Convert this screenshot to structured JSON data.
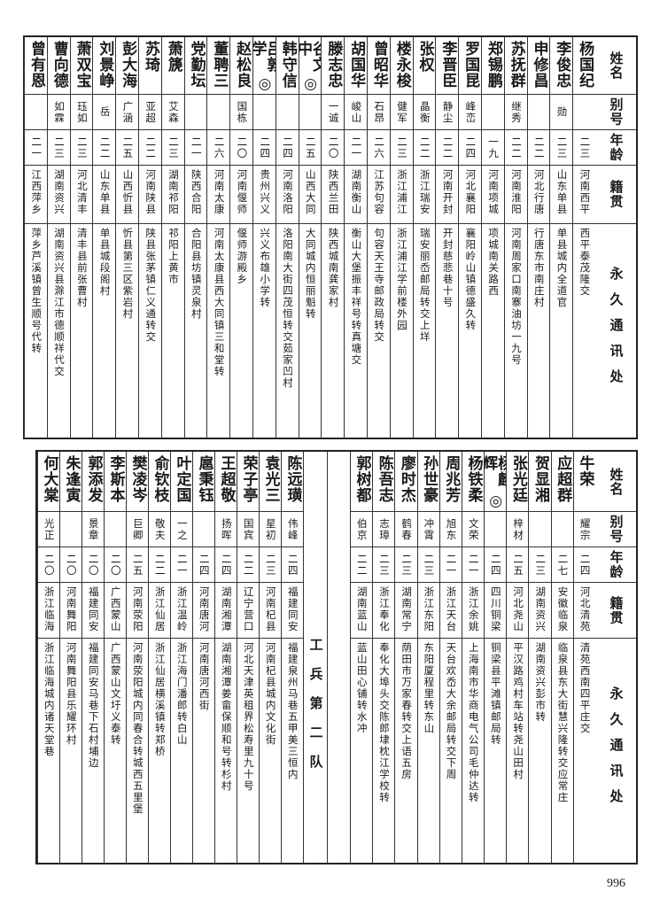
{
  "header": {
    "name": "姓名",
    "alias": "别号",
    "age": "年龄",
    "native": "籍贯",
    "address": "永久通讯处"
  },
  "top_table": {
    "rows": [
      {
        "name": "杨国纪",
        "alias": "",
        "age": "二三",
        "native": "河南西平",
        "address": "西平泰茂隆交"
      },
      {
        "name": "李俊忠",
        "alias": "勋",
        "age": "二三",
        "native": "山东单县",
        "address": "单县城内全道官"
      },
      {
        "name": "申修昌",
        "alias": "",
        "age": "二二",
        "native": "河北行唐",
        "address": "行唐东市南庄村"
      },
      {
        "name": "苏抚群",
        "alias": "继秀",
        "age": "二二",
        "native": "河南淮阳",
        "address": "河南周家口南寨油坊一九号"
      },
      {
        "name": "郑锡鹏",
        "alias": "",
        "age": "一九",
        "native": "河南项城",
        "address": "项城南关路西"
      },
      {
        "name": "罗国昆",
        "alias": "峰峦",
        "age": "二四",
        "native": "河北襄阳",
        "address": "襄阳岭山镇德盛久转"
      },
      {
        "name": "李晋臣",
        "alias": "静尘",
        "age": "二二",
        "native": "河南开封",
        "address": "开封慈悲巷十号"
      },
      {
        "name": "张权",
        "alias": "晶衡",
        "age": "二二",
        "native": "浙江瑞安",
        "address": "瑞安丽岙邮局转交上垟"
      },
      {
        "name": "楼永梭",
        "alias": "健军",
        "age": "二三",
        "native": "浙江浦江",
        "address": "浙江浦江学前楼外园"
      },
      {
        "name": "曾昭华",
        "alias": "石昂",
        "age": "二六",
        "native": "江苏句容",
        "address": "句容天王寺邮政局转交"
      },
      {
        "name": "胡国华",
        "alias": "峻山",
        "age": "二一",
        "native": "湖南衡山",
        "address": "衡山大堡振丰祥号转真塘交"
      },
      {
        "name": "滕志忠",
        "alias": "一诚",
        "age": "二〇",
        "native": "陕西兰田",
        "address": "陕西城南龚家村"
      },
      {
        "name": "谷文中",
        "mark": "◎",
        "alias": "",
        "age": "二五",
        "native": "山西大同",
        "address": "大同城内恒丽魁转"
      },
      {
        "name": "韩守信",
        "alias": "",
        "age": "二四",
        "native": "河南洛阳",
        "address": "洛阳南大街四茂恒转交茹家凹村"
      },
      {
        "name": "吕敦学",
        "mark": "◎",
        "alias": "",
        "age": "二四",
        "native": "贵州兴义",
        "address": "兴义布雄小学转"
      },
      {
        "name": "赵松良",
        "alias": "国栋",
        "age": "二〇",
        "native": "河南偃师",
        "address": "偃师游殿乡"
      },
      {
        "name": "董聘三",
        "alias": "",
        "age": "二六",
        "native": "河南太康",
        "address": "河南太康县西大同镇三和堂转"
      },
      {
        "name": "党勤坛",
        "alias": "",
        "age": "二一",
        "native": "陕西合阳",
        "address": "合阳县坊镇灵泉村"
      },
      {
        "name": "萧篪",
        "alias": "艾森",
        "age": "二三",
        "native": "湖南祁阳",
        "address": "祁阳上黄市"
      },
      {
        "name": "苏琦",
        "alias": "亚超",
        "age": "二二",
        "native": "河南陕县",
        "address": "陕县张茅镇仁义通转交"
      },
      {
        "name": "彭大海",
        "alias": "广涵",
        "age": "二五",
        "native": "山西忻县",
        "address": "忻县第三区紫岩村"
      },
      {
        "name": "刘景峥",
        "alias": "岳",
        "age": "二二",
        "native": "山东单县",
        "address": "单县城段阁村"
      },
      {
        "name": "萧双宝",
        "alias": "珏如",
        "age": "二三",
        "native": "河北清丰",
        "address": "清丰县前张曹村"
      },
      {
        "name": "曹向德",
        "alias": "如霖",
        "age": "二三",
        "native": "湖南资兴",
        "address": "湖南资兴县滁江市德顺祥代交"
      },
      {
        "name": "曾有恩",
        "alias": "",
        "age": "二一",
        "native": "江西萍乡",
        "address": "萍乡芦溪镇曾生顺号代转"
      }
    ]
  },
  "bottom_table": {
    "rows_right": [
      {
        "name": "牛荣",
        "alias": "耀宗",
        "age": "二四",
        "native": "河北清苑",
        "address": "清苑西南四平庄交"
      },
      {
        "name": "应超群",
        "alias": "",
        "age": "二七",
        "native": "安徽临泉",
        "address": "临泉县东大街慧兴隆转交应常庄"
      },
      {
        "name": "贺显湘",
        "alias": "",
        "age": "二三",
        "native": "湖南资兴",
        "address": "湖南资兴彭市转"
      },
      {
        "name": "张光廷",
        "alias": "梓材",
        "age": "二五",
        "native": "河北尧山",
        "address": "平汉路鸡村车站转尧山田村"
      },
      {
        "name": "杨麟辉",
        "mark": "◎",
        "alias": "",
        "age": "二四",
        "native": "四川铜梁",
        "address": "铜梁县平滩镇邮局转"
      },
      {
        "name": "杨铁柔",
        "alias": "文荣",
        "age": "二一",
        "native": "浙江余姚",
        "address": "上海南市华商电气公司毛仲达转"
      },
      {
        "name": "周兆芳",
        "alias": "旭东",
        "age": "二一",
        "native": "浙江天台",
        "address": "天台欢岙大余邮局转交下周"
      },
      {
        "name": "孙世豪",
        "alias": "冲霄",
        "age": "二三",
        "native": "浙江东阳",
        "address": "东阳厦程里转东山"
      },
      {
        "name": "廖时杰",
        "alias": "鹤春",
        "age": "二三",
        "native": "湖南常宁",
        "address": "荫田市万家春转交上语五房"
      },
      {
        "name": "陈吾志",
        "alias": "志璋",
        "age": "二三",
        "native": "浙江奉化",
        "address": "奉化大埠头交陈郎埭枕江学校转"
      },
      {
        "name": "郭树都",
        "alias": "伯京",
        "age": "二二",
        "native": "湖南蓝山",
        "address": "蓝山田心铺转水冲"
      }
    ],
    "section_title": "工兵第二队",
    "rows_left": [
      {
        "name": "陈远璜",
        "alias": "伟峰",
        "age": "二四",
        "native": "福建同安",
        "address": "福建泉州马巷五甲美三恒内"
      },
      {
        "name": "袁光三",
        "alias": "星初",
        "age": "二三",
        "native": "河南杞县",
        "address": "河南杞县城内文化街"
      },
      {
        "name": "荣子亭",
        "alias": "国宾",
        "age": "二二",
        "native": "辽宁营口",
        "address": "河北天津英租界松寿里九十号"
      },
      {
        "name": "王超敬",
        "alias": "扬晖",
        "age": "二四",
        "native": "湖南湘潭",
        "address": "湖南湘潭姜畲保顺和号转杉村"
      },
      {
        "name": "扈秉钰",
        "alias": "",
        "age": "二四",
        "native": "河南唐河",
        "address": "河南唐河西街"
      },
      {
        "name": "叶定国",
        "alias": "一之",
        "age": "二一",
        "native": "浙江温岭",
        "address": "浙江海门潘郎转白山"
      },
      {
        "name": "俞钦枝",
        "alias": "敬夫",
        "age": "二二",
        "native": "浙江仙居",
        "address": "浙江仙居横溪镇转郑桥"
      },
      {
        "name": "樊凌岑",
        "alias": "巨卿",
        "age": "二五",
        "native": "河南荥阳",
        "address": "河南荥阳城内同春合转城西五里堡"
      },
      {
        "name": "李斯本",
        "alias": "",
        "age": "二〇",
        "native": "广西蒙山",
        "address": "广西蒙山文圩义泰转"
      },
      {
        "name": "郭添发",
        "alias": "景章",
        "age": "二〇",
        "native": "福建同安",
        "address": "福建同安马巷下石村埔边"
      },
      {
        "name": "朱逢寅",
        "alias": "",
        "age": "二〇",
        "native": "河南舞阳",
        "address": "河南舞阳县乐耀环村"
      },
      {
        "name": "何大棠",
        "alias": "光正",
        "age": "二〇",
        "native": "浙江临海",
        "address": "浙江临海城内诸天堂巷"
      }
    ]
  },
  "page_number": "996"
}
